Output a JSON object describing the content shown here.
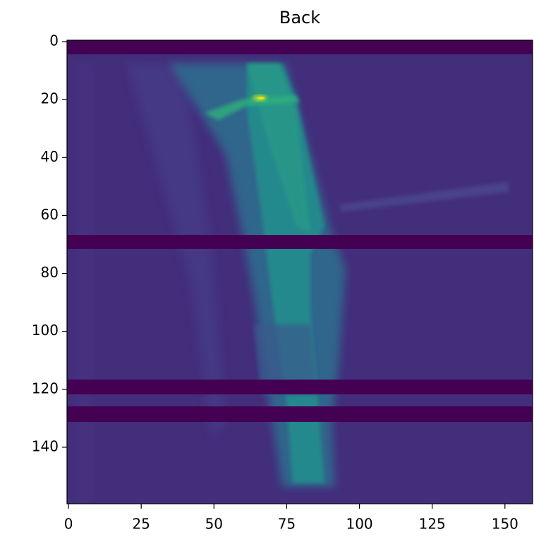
{
  "chart_data": {
    "type": "image",
    "title": "Back",
    "xlim": [
      -0.5,
      159.5
    ],
    "ylim": [
      159.5,
      -0.5
    ],
    "xticks": [
      0,
      25,
      50,
      75,
      100,
      125,
      150
    ],
    "yticks": [
      0,
      20,
      40,
      60,
      80,
      100,
      120,
      140
    ]
  }
}
